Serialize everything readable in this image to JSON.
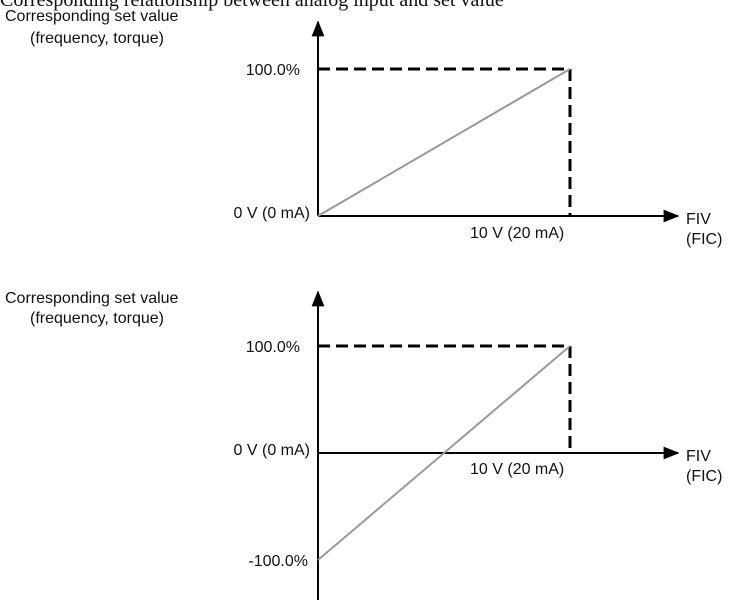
{
  "caption": "Corresponding relationship between analog input and set value",
  "diagrams": [
    {
      "y_label": [
        "Corresponding set value",
        "(frequency, torque)"
      ],
      "y_ticks": [
        "100.0%",
        "0 V (0 mA)"
      ],
      "x_tick": "10 V (20 mA)",
      "x_label": [
        "FIV",
        "(FIC)"
      ]
    },
    {
      "y_label": [
        "Corresponding set value",
        "(frequency, torque)"
      ],
      "y_ticks": [
        "100.0%",
        "0 V (0 mA)",
        "-100.0%"
      ],
      "x_tick": "10 V (20 mA)",
      "x_label": [
        "FIV",
        "(FIC)"
      ]
    }
  ]
}
